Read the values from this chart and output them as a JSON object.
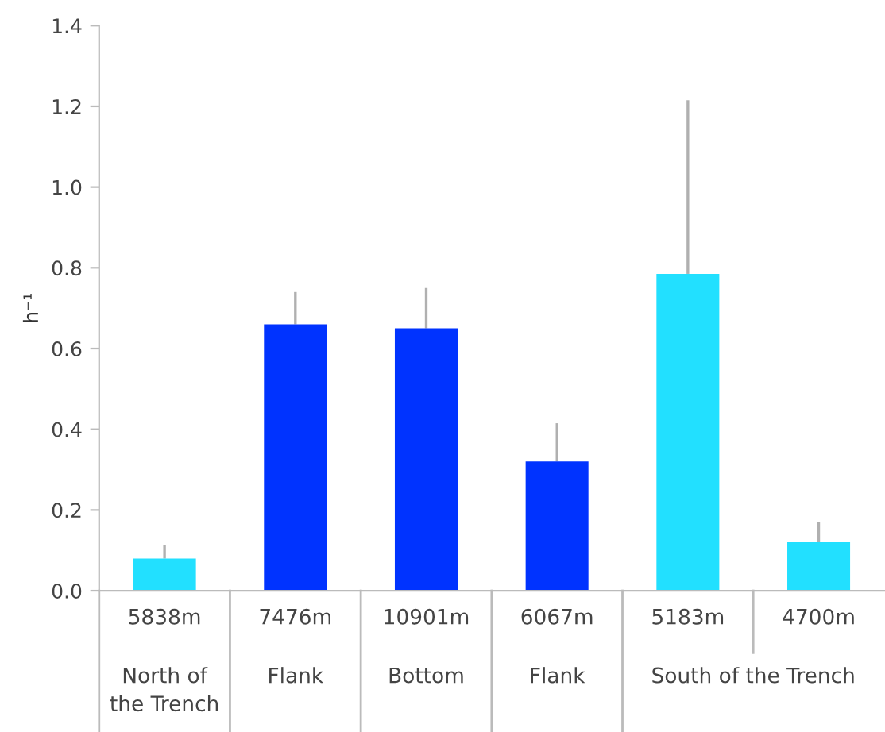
{
  "chart_data": {
    "type": "bar",
    "ylabel": "h⁻¹",
    "categories": [
      "5838m",
      "7476m",
      "10901m",
      "6067m",
      "5183m",
      "4700m"
    ],
    "values": [
      0.08,
      0.66,
      0.65,
      0.32,
      0.785,
      0.12
    ],
    "colors": [
      "#22e0ff",
      "#0033ff",
      "#0033ff",
      "#0033ff",
      "#22e0ff",
      "#22e0ff"
    ],
    "errors": [
      [
        0.08,
        0.113
      ],
      [
        0.66,
        0.74
      ],
      [
        0.65,
        0.75
      ],
      [
        0.32,
        0.415
      ],
      [
        0.785,
        1.215
      ],
      [
        0.12,
        0.17
      ]
    ],
    "ylim": [
      0,
      1.4
    ],
    "yticks": [
      {
        "value": 0,
        "label": "0.0"
      },
      0.2,
      0.4,
      0.6,
      0.8,
      {
        "value": 1,
        "label": "1.0"
      },
      1.2,
      1.4
    ],
    "annotations": [
      "North of\nthe Trench",
      "Flank",
      "Bottom",
      "Flank",
      "South of the Trench"
    ],
    "grid": false,
    "legend": false
  }
}
